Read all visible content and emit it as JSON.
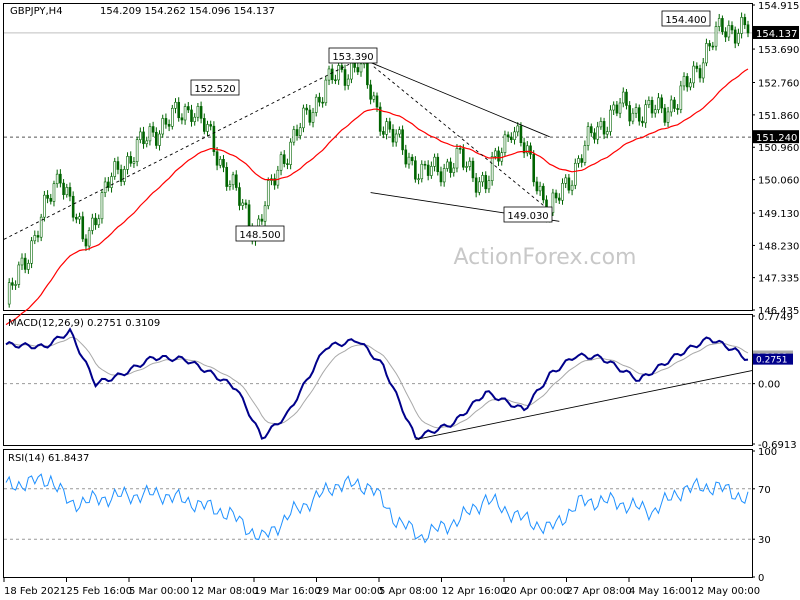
{
  "header": {
    "symbol": "GBPJPY,H4",
    "ohlc": "154.209 154.262 154.096 154.137"
  },
  "watermark": "ActionForex.com",
  "colors": {
    "candle": "#006400",
    "ma": "#ff0000",
    "macd_main": "#00008b",
    "macd_signal": "#a9a9a9",
    "rsi": "#1e90ff",
    "trendline": "#000000"
  },
  "chart_data": [
    {
      "type": "candlestick",
      "panel": "price",
      "yticks": [
        "154.915",
        "154.137",
        "153.690",
        "152.760",
        "151.860",
        "151.240",
        "150.960",
        "150.060",
        "149.130",
        "148.230",
        "147.335",
        "146.435"
      ],
      "current_price": 154.137,
      "level": 151.24,
      "annotations": [
        {
          "text": "152.520",
          "value": 152.52
        },
        {
          "text": "153.390",
          "value": 153.39
        },
        {
          "text": "148.500",
          "value": 148.5
        },
        {
          "text": "149.030",
          "value": 149.03
        },
        {
          "text": "154.400",
          "value": 154.4
        }
      ],
      "ylim": [
        146.435,
        154.915
      ],
      "moving_average": "red line"
    },
    {
      "type": "line",
      "panel": "macd",
      "label": "MACD(12,26,9) 0.2751 0.3109",
      "yticks": [
        "0.7749",
        "0.3109",
        "0.2751",
        "0.00",
        "-0.6913"
      ],
      "series": [
        {
          "name": "main",
          "value": 0.2751
        },
        {
          "name": "signal",
          "value": 0.3109
        }
      ],
      "ylim": [
        -0.6913,
        0.7749
      ]
    },
    {
      "type": "line",
      "panel": "rsi",
      "label": "RSI(14) 61.8437",
      "yticks": [
        "100",
        "70",
        "30",
        "0"
      ],
      "levels": [
        70,
        30
      ],
      "last_value": 61.8437,
      "ylim": [
        0,
        100
      ]
    }
  ],
  "xaxis": {
    "labels": [
      "18 Feb 2021",
      "25 Feb 16:00",
      "5 Mar 00:00",
      "12 Mar 08:00",
      "19 Mar 16:00",
      "29 Mar 00:00",
      "5 Apr 08:00",
      "12 Apr 16:00",
      "20 Apr 00:00",
      "27 Apr 08:00",
      "4 May 16:00",
      "12 May 00:00"
    ]
  }
}
